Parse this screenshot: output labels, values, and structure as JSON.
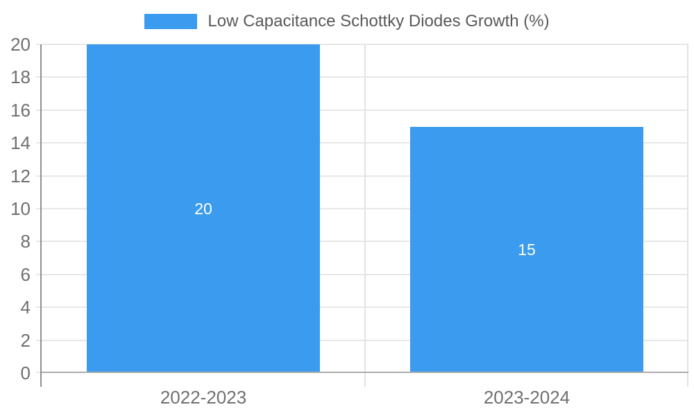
{
  "legend": {
    "label": "Low Capacitance Schottky Diodes Growth (%)"
  },
  "chart_data": {
    "type": "bar",
    "title": "",
    "xlabel": "",
    "ylabel": "",
    "categories": [
      "2022-2023",
      "2023-2024"
    ],
    "series": [
      {
        "name": "Low Capacitance Schottky Diodes Growth (%)",
        "values": [
          20,
          15
        ]
      }
    ],
    "bar_value_labels": [
      "20",
      "15"
    ],
    "y_ticks": [
      0,
      2,
      4,
      6,
      8,
      10,
      12,
      14,
      16,
      18,
      20
    ],
    "ylim": [
      0,
      20
    ],
    "grid": true,
    "legend_position": "top-center",
    "colors": {
      "bar": "#3B9BEE",
      "grid_line": "#E7E7E7",
      "axis_line": "#8F8F8F",
      "baseline": "#ABABAB",
      "category_separator": "#E2E2E2",
      "plot_right_border": "#E2E2E2",
      "tick_label": "#6F6F6F",
      "legend_text": "#58595B",
      "bar_label": "#FFFFFF"
    }
  }
}
